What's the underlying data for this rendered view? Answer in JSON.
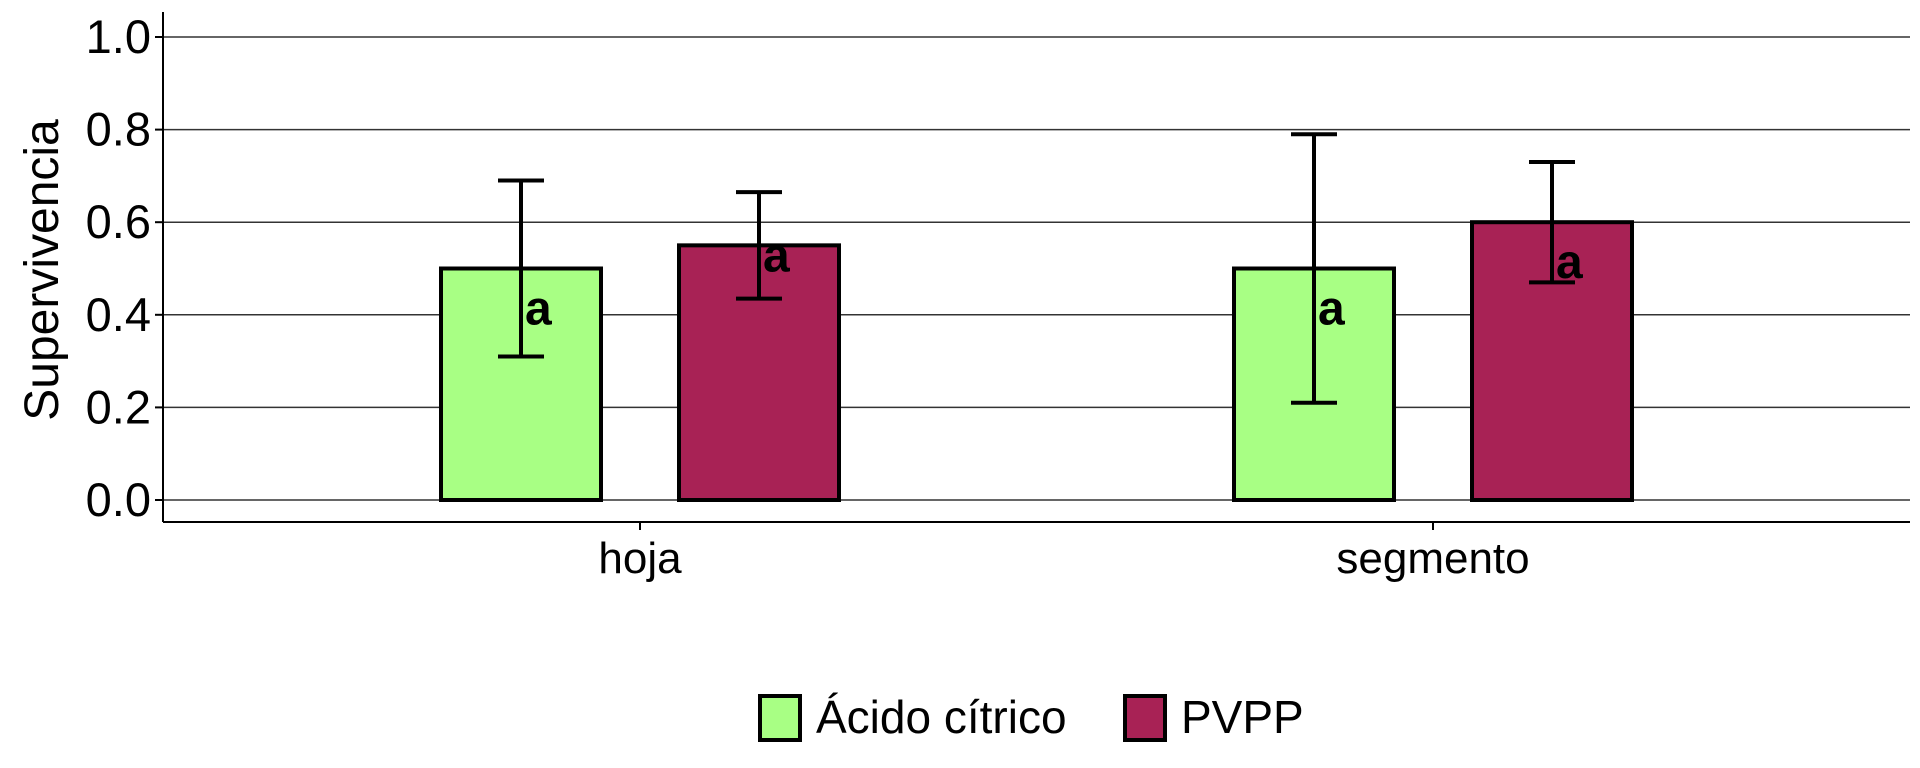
{
  "chart_data": {
    "type": "bar",
    "title": "",
    "xlabel": "",
    "ylabel": "Supervivencia",
    "ylim": [
      0,
      1.0
    ],
    "yticks": [
      "0.0",
      "0.2",
      "0.4",
      "0.6",
      "0.8",
      "1.0"
    ],
    "categories": [
      "hoja",
      "segmento"
    ],
    "series": [
      {
        "name": "Ácido cítrico",
        "color": "#a8ff84",
        "values": [
          0.5,
          0.5
        ],
        "error_low": [
          0.31,
          0.21
        ],
        "error_high": [
          0.69,
          0.79
        ],
        "labels": [
          "a",
          "a"
        ]
      },
      {
        "name": "PVPP",
        "color": "#a82255",
        "values": [
          0.55,
          0.6
        ],
        "error_low": [
          0.435,
          0.47
        ],
        "error_high": [
          0.665,
          0.73
        ],
        "labels": [
          "a",
          "a"
        ]
      }
    ],
    "grid": true,
    "legend": "bottom"
  }
}
